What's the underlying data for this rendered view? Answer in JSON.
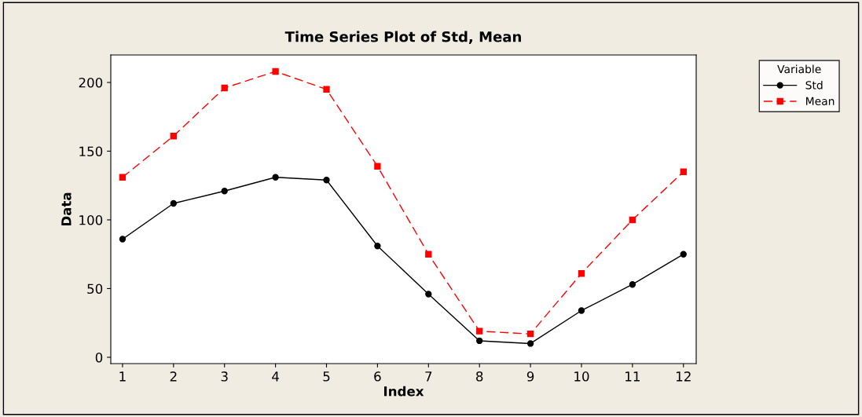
{
  "chart_data": {
    "type": "line",
    "title": "Time Series Plot of Std, Mean",
    "xlabel": "Index",
    "ylabel": "Data",
    "legend_title": "Variable",
    "x": [
      1,
      2,
      3,
      4,
      5,
      6,
      7,
      8,
      9,
      10,
      11,
      12
    ],
    "series": [
      {
        "name": "Std",
        "color": "#000000",
        "marker": "circle",
        "line_style": "solid",
        "values": [
          86,
          112,
          121,
          131,
          129,
          81,
          46,
          12,
          10,
          34,
          53,
          75
        ]
      },
      {
        "name": "Mean",
        "color": "#ff0000",
        "marker": "square",
        "line_style": "dashed",
        "values": [
          131,
          161,
          196,
          208,
          195,
          139,
          75,
          19,
          17,
          61,
          100,
          135
        ]
      }
    ],
    "xlim": [
      0.77,
      12.25
    ],
    "xticks": [
      1,
      2,
      3,
      4,
      5,
      6,
      7,
      8,
      9,
      10,
      11,
      12
    ],
    "ylim": [
      -4.6,
      220
    ],
    "yticks": [
      0,
      50,
      100,
      150,
      200
    ],
    "grid": false,
    "legend": "top right"
  }
}
